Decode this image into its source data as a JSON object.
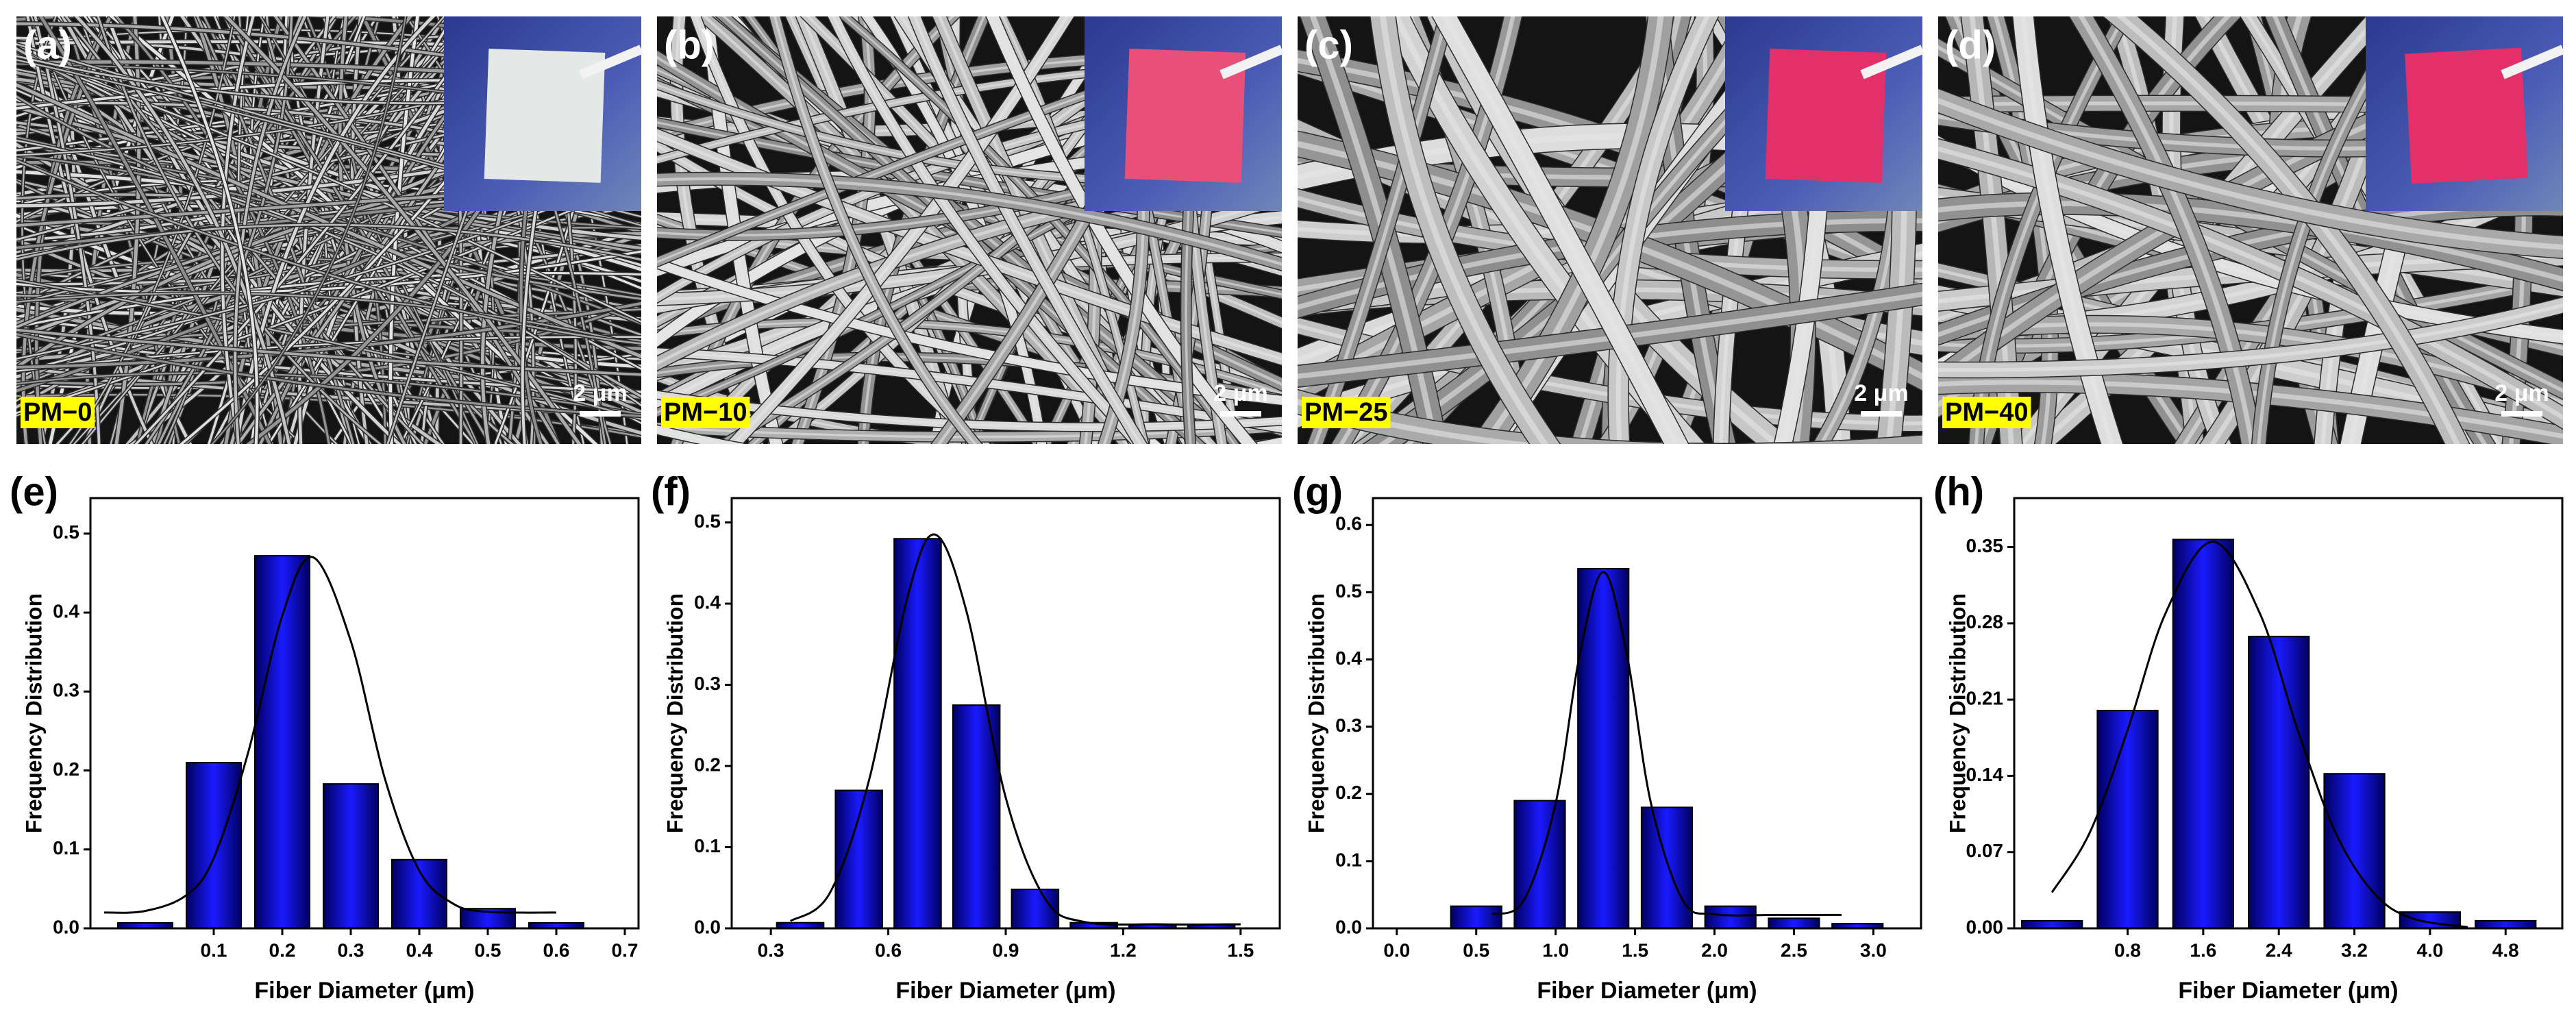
{
  "images": [
    {
      "panel_label": "(a)",
      "sample": "PM−0",
      "scale_bar": "2 μm"
    },
    {
      "panel_label": "(b)",
      "sample": "PM−10",
      "scale_bar": "2 μm"
    },
    {
      "panel_label": "(c)",
      "sample": "PM−25",
      "scale_bar": "2 μm"
    },
    {
      "panel_label": "(d)",
      "sample": "PM−40",
      "scale_bar": "2 μm"
    }
  ],
  "chart_data": [
    {
      "type": "histogram",
      "panel_label": "(e)",
      "x_label": "Fiber Diameter (μm)",
      "y_label": "Frequency Distribution",
      "bins": [
        -0.05,
        0.05,
        0.15,
        0.25,
        0.35,
        0.45,
        0.55,
        0.65
      ],
      "values": [
        0.007,
        0.21,
        0.472,
        0.183,
        0.087,
        0.025,
        0.007
      ],
      "color": "#0000dd",
      "fit": {
        "x": [
          -0.06,
          0,
          0.06,
          0.1,
          0.15,
          0.2,
          0.245,
          0.3,
          0.35,
          0.4,
          0.45,
          0.5,
          0.6
        ],
        "values": [
          0.02,
          0.022,
          0.042,
          0.089,
          0.222,
          0.396,
          0.47,
          0.364,
          0.189,
          0.073,
          0.031,
          0.021,
          0.02
        ]
      },
      "fit_color": "#000000",
      "xlim": [
        -0.08,
        0.72
      ],
      "ylim": [
        0,
        0.545
      ],
      "xticks": [
        0.1,
        0.2,
        0.3,
        0.4,
        0.5,
        0.6,
        0.7
      ],
      "yticks": [
        {
          "value": 0,
          "label": "0.0"
        },
        0.1,
        0.2,
        0.3,
        0.4,
        0.5
      ]
    },
    {
      "type": "histogram",
      "panel_label": "(f)",
      "x_label": "Fiber Diameter (μm)",
      "y_label": "Frequency Distribution",
      "bins": [
        0.3,
        0.45,
        0.6,
        0.75,
        0.9,
        1.05,
        1.2,
        1.35,
        1.5
      ],
      "values": [
        0.007,
        0.17,
        0.48,
        0.275,
        0.048,
        0.007,
        0.005,
        0.005
      ],
      "color": "#0000dd",
      "fit": {
        "x": [
          0.35,
          0.45,
          0.55,
          0.65,
          0.72,
          0.8,
          0.9,
          1.0,
          1.1,
          1.3,
          1.5
        ],
        "values": [
          0.009,
          0.043,
          0.181,
          0.41,
          0.485,
          0.39,
          0.161,
          0.037,
          0.008,
          0.005,
          0.005
        ]
      },
      "fit_color": "#000000",
      "xlim": [
        0.2,
        1.6
      ],
      "ylim": [
        0,
        0.53
      ],
      "xticks": [
        0.3,
        0.6,
        0.9,
        1.2,
        1.5
      ],
      "yticks": [
        {
          "value": 0,
          "label": "0.0"
        },
        0.1,
        0.2,
        0.3,
        0.4,
        0.5
      ]
    },
    {
      "type": "histogram",
      "panel_label": "(g)",
      "x_label": "Fiber Diameter (μm)",
      "y_label": "Frequency Distribution",
      "bins": [
        0.3,
        0.7,
        1.1,
        1.5,
        1.9,
        2.3,
        2.7,
        3.1
      ],
      "values": [
        0.033,
        0.19,
        0.535,
        0.18,
        0.033,
        0.015,
        0.007
      ],
      "color": "#0000dd",
      "fit": {
        "x": [
          0.6,
          0.8,
          1.0,
          1.15,
          1.3,
          1.45,
          1.6,
          1.8,
          2.0,
          2.4,
          2.8
        ],
        "values": [
          0.021,
          0.042,
          0.186,
          0.405,
          0.53,
          0.405,
          0.186,
          0.042,
          0.021,
          0.02,
          0.02
        ]
      },
      "fit_color": "#000000",
      "xlim": [
        -0.15,
        3.3
      ],
      "ylim": [
        0,
        0.64
      ],
      "xticks": [
        {
          "value": 0,
          "label": "0.0"
        },
        0.5,
        {
          "value": 1,
          "label": "1.0"
        },
        1.5,
        {
          "value": 2,
          "label": "2.0"
        },
        2.5,
        {
          "value": 3,
          "label": "3.0"
        }
      ],
      "yticks": [
        {
          "value": 0,
          "label": "0.0"
        },
        0.1,
        0.2,
        0.3,
        0.4,
        0.5,
        0.6
      ]
    },
    {
      "type": "histogram",
      "panel_label": "(h)",
      "x_label": "Fiber Diameter (μm)",
      "y_label": "Frequency Distribution",
      "bins": [
        -0.4,
        0.4,
        1.2,
        2.0,
        2.8,
        3.6,
        4.4,
        5.2
      ],
      "values": [
        0.007,
        0.2,
        0.357,
        0.268,
        0.142,
        0.015,
        0.007
      ],
      "color": "#0000dd",
      "fit": {
        "x": [
          0,
          0.4,
          0.8,
          1.2,
          1.7,
          2.2,
          2.6,
          3.0,
          3.4,
          3.8,
          4.4
        ],
        "values": [
          0.033,
          0.088,
          0.182,
          0.289,
          0.355,
          0.289,
          0.182,
          0.088,
          0.033,
          0.0095,
          0.001
        ]
      },
      "fit_color": "#000000",
      "xlim": [
        -0.4,
        5.4
      ],
      "ylim": [
        0,
        0.395
      ],
      "xticks": [
        0.8,
        1.6,
        2.4,
        3.2,
        {
          "value": 4,
          "label": "4.0"
        },
        4.8
      ],
      "yticks": [
        {
          "value": 0,
          "label": "0.00"
        },
        0.07,
        0.14,
        0.21,
        0.28,
        0.35
      ]
    }
  ]
}
